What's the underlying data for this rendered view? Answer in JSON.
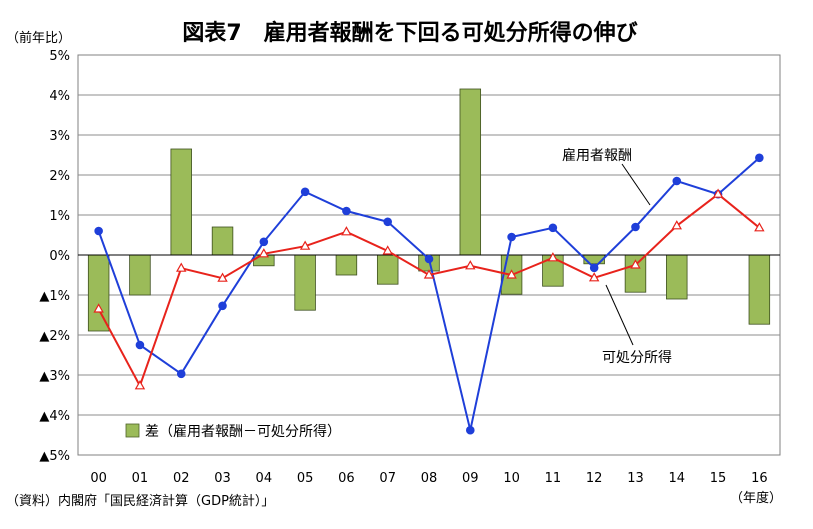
{
  "chart_data": {
    "type": "bar+line",
    "title": "図表7　雇用者報酬を下回る可処分所得の伸び",
    "y_unit_label": "（前年比）",
    "x_unit_label": "（年度）",
    "source": "（資料）内閣府「国民経済計算（GDP統計）」",
    "categories": [
      "00",
      "01",
      "02",
      "03",
      "04",
      "05",
      "06",
      "07",
      "08",
      "09",
      "10",
      "11",
      "12",
      "13",
      "14",
      "15",
      "16"
    ],
    "ylim": [
      -5,
      5
    ],
    "yticks": [
      {
        "value": 5,
        "label": "5%"
      },
      {
        "value": 4,
        "label": "4%"
      },
      {
        "value": 3,
        "label": "3%"
      },
      {
        "value": 2,
        "label": "2%"
      },
      {
        "value": 1,
        "label": "1%"
      },
      {
        "value": 0,
        "label": "0%"
      },
      {
        "value": -1,
        "label": "▲1%"
      },
      {
        "value": -2,
        "label": "▲2%"
      },
      {
        "value": -3,
        "label": "▲3%"
      },
      {
        "value": -4,
        "label": "▲4%"
      },
      {
        "value": -5,
        "label": "▲5%"
      }
    ],
    "grid": true,
    "series": [
      {
        "name": "差（雇用者報酬－可処分所得）",
        "type": "bar",
        "color": "#9bbb59",
        "values": [
          -1.9,
          -1.0,
          2.65,
          0.7,
          -0.27,
          -1.38,
          -0.5,
          -0.73,
          -0.4,
          4.15,
          -0.98,
          -0.78,
          -0.22,
          -0.93,
          -1.1,
          0.0,
          -1.73
        ]
      },
      {
        "name": "雇用者報酬",
        "type": "line",
        "color": "#1f3fd9",
        "marker": "circle",
        "values": [
          0.6,
          -2.25,
          -2.97,
          -1.27,
          0.33,
          1.58,
          1.1,
          0.83,
          -0.1,
          -4.38,
          0.45,
          0.68,
          -0.32,
          0.7,
          1.85,
          1.52,
          2.43
        ]
      },
      {
        "name": "可処分所得",
        "type": "line",
        "color": "#e8231c",
        "marker": "triangle",
        "values": [
          -1.35,
          -3.27,
          -0.33,
          -0.58,
          0.03,
          0.22,
          0.58,
          0.1,
          -0.5,
          -0.27,
          -0.5,
          -0.07,
          -0.57,
          -0.25,
          0.73,
          1.52,
          0.68
        ]
      }
    ],
    "legend": {
      "placement": "bottom-left",
      "label": "差（雇用者報酬－可処分所得）"
    },
    "callouts": [
      {
        "series": "雇用者報酬",
        "text": "雇用者報酬"
      },
      {
        "series": "可処分所得",
        "text": "可処分所得"
      }
    ]
  }
}
